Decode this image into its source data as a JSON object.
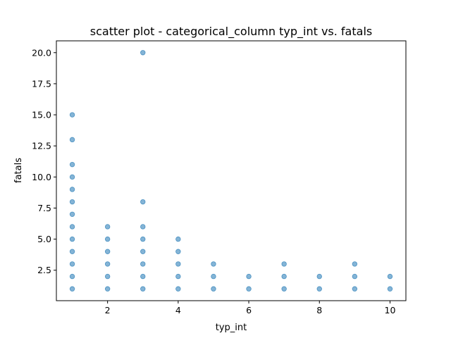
{
  "chart_data": {
    "type": "scatter",
    "title": "scatter plot - categorical_column typ_int vs. fatals",
    "xlabel": "typ_int",
    "ylabel": "fatals",
    "xlim": [
      0.55,
      10.45
    ],
    "ylim": [
      0.05,
      20.95
    ],
    "xticks": [
      2,
      4,
      6,
      8,
      10
    ],
    "xtick_labels": [
      "2",
      "4",
      "6",
      "8",
      "10"
    ],
    "yticks": [
      2.5,
      5.0,
      7.5,
      10.0,
      12.5,
      15.0,
      17.5,
      20.0
    ],
    "ytick_labels": [
      "2.5",
      "5.0",
      "7.5",
      "10.0",
      "12.5",
      "15.0",
      "17.5",
      "20.0"
    ],
    "grid": false,
    "marker_color": "#1f77b4",
    "marker_alpha": 0.55,
    "points": [
      {
        "x": 1,
        "y": 1
      },
      {
        "x": 1,
        "y": 2
      },
      {
        "x": 1,
        "y": 3
      },
      {
        "x": 1,
        "y": 4
      },
      {
        "x": 1,
        "y": 5
      },
      {
        "x": 1,
        "y": 6
      },
      {
        "x": 1,
        "y": 7
      },
      {
        "x": 1,
        "y": 8
      },
      {
        "x": 1,
        "y": 9
      },
      {
        "x": 1,
        "y": 10
      },
      {
        "x": 1,
        "y": 11
      },
      {
        "x": 1,
        "y": 13
      },
      {
        "x": 1,
        "y": 15
      },
      {
        "x": 2,
        "y": 1
      },
      {
        "x": 2,
        "y": 2
      },
      {
        "x": 2,
        "y": 3
      },
      {
        "x": 2,
        "y": 4
      },
      {
        "x": 2,
        "y": 5
      },
      {
        "x": 2,
        "y": 6
      },
      {
        "x": 3,
        "y": 1
      },
      {
        "x": 3,
        "y": 2
      },
      {
        "x": 3,
        "y": 3
      },
      {
        "x": 3,
        "y": 4
      },
      {
        "x": 3,
        "y": 5
      },
      {
        "x": 3,
        "y": 6
      },
      {
        "x": 3,
        "y": 8
      },
      {
        "x": 3,
        "y": 20
      },
      {
        "x": 4,
        "y": 1
      },
      {
        "x": 4,
        "y": 2
      },
      {
        "x": 4,
        "y": 3
      },
      {
        "x": 4,
        "y": 4
      },
      {
        "x": 4,
        "y": 5
      },
      {
        "x": 5,
        "y": 1
      },
      {
        "x": 5,
        "y": 2
      },
      {
        "x": 5,
        "y": 3
      },
      {
        "x": 6,
        "y": 1
      },
      {
        "x": 6,
        "y": 2
      },
      {
        "x": 7,
        "y": 1
      },
      {
        "x": 7,
        "y": 2
      },
      {
        "x": 7,
        "y": 3
      },
      {
        "x": 8,
        "y": 1
      },
      {
        "x": 8,
        "y": 2
      },
      {
        "x": 9,
        "y": 1
      },
      {
        "x": 9,
        "y": 2
      },
      {
        "x": 9,
        "y": 3
      },
      {
        "x": 10,
        "y": 1
      },
      {
        "x": 10,
        "y": 2
      }
    ]
  }
}
